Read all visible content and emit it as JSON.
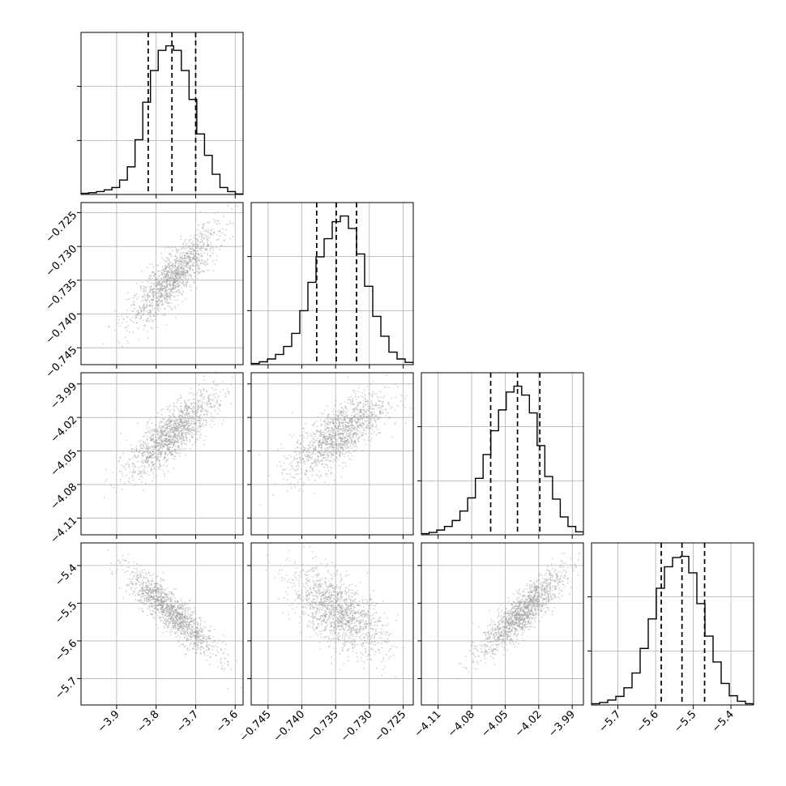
{
  "chart_data": {
    "type": "corner",
    "title": "",
    "parameters": [
      {
        "range": [
          -3.99,
          -3.58
        ],
        "ticks": [
          -3.9,
          -3.8,
          -3.7,
          -3.6
        ],
        "tick_labels": [
          "−3.9",
          "−3.8",
          "−3.7",
          "−3.6"
        ],
        "quantiles": [
          -3.82,
          -3.76,
          -3.7
        ],
        "histogram": {
          "edges_range": [
            -3.99,
            -3.58
          ],
          "counts": [
            2,
            3,
            5,
            8,
            12,
            25,
            48,
            95,
            160,
            215,
            250,
            258,
            250,
            215,
            165,
            105,
            68,
            35,
            12,
            5,
            1
          ]
        }
      },
      {
        "range": [
          -0.7475,
          -0.7235
        ],
        "ticks": [
          -0.725,
          -0.73,
          -0.735,
          -0.74,
          -0.745
        ],
        "tick_labels": [
          "−0.725",
          "−0.730",
          "−0.735",
          "−0.740",
          "−0.745"
        ],
        "x_ticks": [
          -0.745,
          -0.74,
          -0.735,
          -0.73,
          -0.725
        ],
        "x_tick_labels": [
          "−0.745",
          "−0.740",
          "−0.735",
          "−0.730",
          "−0.725"
        ],
        "quantiles": [
          -0.7378,
          -0.7349,
          -0.7319
        ],
        "histogram": {
          "edges_range": [
            -0.7475,
            -0.7235
          ],
          "counts": [
            2,
            5,
            10,
            18,
            32,
            55,
            95,
            145,
            190,
            222,
            252,
            262,
            240,
            195,
            138,
            85,
            50,
            22,
            10,
            4
          ]
        }
      },
      {
        "range": [
          -4.125,
          -3.98
        ],
        "ticks": [
          -3.99,
          -4.02,
          -4.05,
          -4.08,
          -4.11
        ],
        "tick_labels": [
          "−3.99",
          "−4.02",
          "−4.05",
          "−4.08",
          "−4.11"
        ],
        "x_ticks": [
          -4.11,
          -4.08,
          -4.05,
          -4.02,
          -3.99
        ],
        "x_tick_labels": [
          "−4.11",
          "−4.08",
          "−4.05",
          "−4.02",
          "−3.99"
        ],
        "quantiles": [
          -4.063,
          -4.039,
          -4.019
        ],
        "histogram": {
          "edges_range": [
            -4.125,
            -3.98
          ],
          "counts": [
            2,
            4,
            8,
            14,
            24,
            40,
            62,
            95,
            135,
            175,
            210,
            240,
            250,
            235,
            205,
            150,
            98,
            60,
            30,
            14,
            5
          ]
        }
      },
      {
        "range": [
          -5.77,
          -5.34
        ],
        "ticks": [
          -5.4,
          -5.5,
          -5.6,
          -5.7
        ],
        "tick_labels": [
          "−5.4",
          "−5.5",
          "−5.6",
          "−5.7"
        ],
        "x_ticks": [
          -5.7,
          -5.6,
          -5.5,
          -5.4
        ],
        "x_tick_labels": [
          "−5.7",
          "−5.6",
          "−5.5",
          "−5.4"
        ],
        "quantiles": [
          -5.585,
          -5.53,
          -5.47
        ],
        "histogram": {
          "edges_range": [
            -5.77,
            -5.34
          ],
          "counts": [
            2,
            4,
            8,
            14,
            28,
            52,
            92,
            140,
            190,
            225,
            240,
            242,
            215,
            165,
            112,
            70,
            35,
            15,
            6,
            2
          ]
        }
      }
    ],
    "pairs": [
      {
        "row": 1,
        "col": 0,
        "mean": [
          -3.755,
          -0.7345
        ],
        "sd": [
          0.055,
          0.0035
        ],
        "corr": 0.85
      },
      {
        "row": 2,
        "col": 0,
        "mean": [
          -3.76,
          -4.035
        ],
        "sd": [
          0.055,
          0.0185
        ],
        "corr": 0.8
      },
      {
        "row": 2,
        "col": 1,
        "mean": [
          -0.7345,
          -4.035
        ],
        "sd": [
          0.0035,
          0.0185
        ],
        "corr": 0.72
      },
      {
        "row": 3,
        "col": 0,
        "mean": [
          -3.76,
          -5.525
        ],
        "sd": [
          0.055,
          0.055
        ],
        "corr": -0.88
      },
      {
        "row": 3,
        "col": 1,
        "mean": [
          -0.7345,
          -5.525
        ],
        "sd": [
          0.0035,
          0.055
        ],
        "corr": -0.6
      },
      {
        "row": 3,
        "col": 2,
        "mean": [
          -4.035,
          -5.525
        ],
        "sd": [
          0.0185,
          0.055
        ],
        "corr": 0.87
      }
    ],
    "hist_ticks": {
      "fractions": [
        0.333,
        0.667
      ]
    },
    "contour_levels_sigma": [
      0.5,
      1.0,
      1.5,
      2.0
    ],
    "grid": true,
    "legend": "none",
    "colors": {
      "line": "#000000",
      "points": "#9a9a9a",
      "grid": "#b0b0b0",
      "density_dark": "#000000"
    }
  }
}
